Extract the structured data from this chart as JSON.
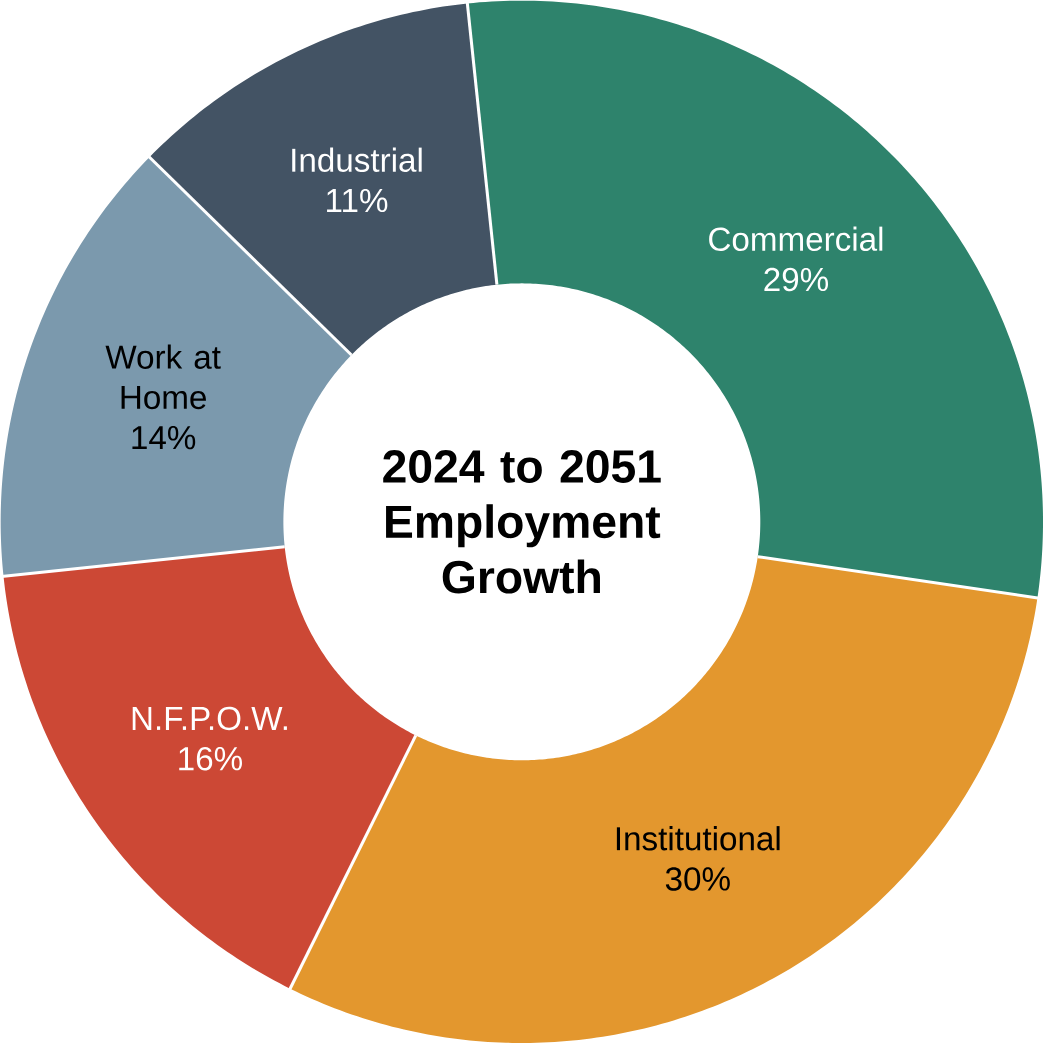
{
  "chart_data": {
    "type": "donut",
    "title": "2024 to 2051 Employment Growth",
    "categories": [
      "Commercial",
      "Institutional",
      "N.F.P.O.W.",
      "Work at Home",
      "Industrial"
    ],
    "values": [
      29,
      30,
      16,
      14,
      11
    ],
    "value_labels": [
      "29%",
      "30%",
      "16%",
      "14%",
      "11%"
    ],
    "colors": [
      "#2e836c",
      "#e3972e",
      "#cc4835",
      "#7b99ad",
      "#435364"
    ]
  }
}
